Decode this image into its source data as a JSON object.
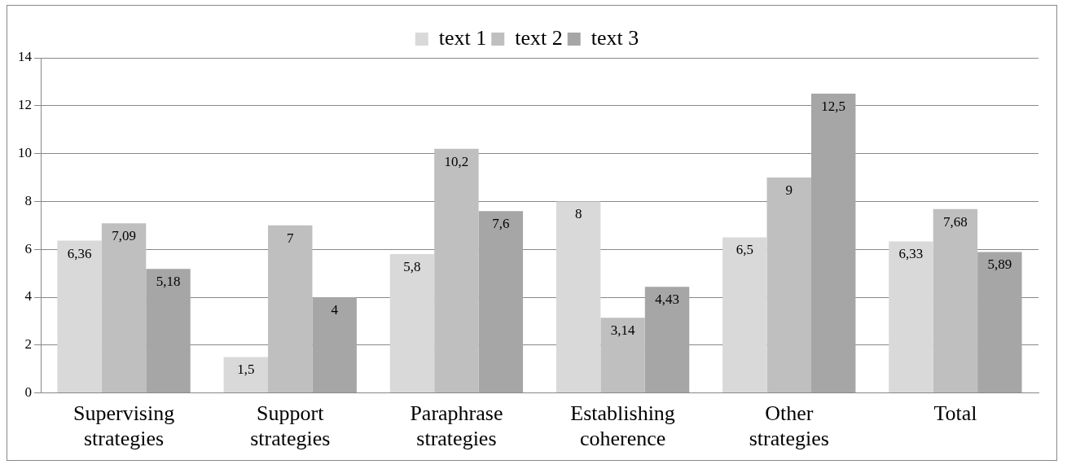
{
  "chart_data": {
    "type": "bar",
    "categories": [
      "Supervising strategies",
      "Support strategies",
      "Paraphrase strategies",
      "Establishing coherence",
      "Other strategies",
      "Total"
    ],
    "series": [
      {
        "name": "text 1",
        "color": "#d9d9d9",
        "values": [
          6.36,
          1.5,
          5.8,
          8,
          6.5,
          6.33
        ],
        "value_labels": [
          "6,36",
          "1,5",
          "5,8",
          "8",
          "6,5",
          "6,33"
        ]
      },
      {
        "name": "text 2",
        "color": "#bfbfbf",
        "values": [
          7.09,
          7,
          10.2,
          3.14,
          9,
          7.68
        ],
        "value_labels": [
          "7,09",
          "7",
          "10,2",
          "3,14",
          "9",
          "7,68"
        ]
      },
      {
        "name": "text 3",
        "color": "#a6a6a6",
        "values": [
          5.18,
          4,
          7.6,
          4.43,
          12.5,
          5.89
        ],
        "value_labels": [
          "5,18",
          "4",
          "7,6",
          "4,43",
          "12,5",
          "5,89"
        ]
      }
    ],
    "ylim": [
      0,
      14
    ],
    "yticks": [
      0,
      2,
      4,
      6,
      8,
      10,
      12,
      14
    ],
    "grid": "y",
    "legend": "top"
  }
}
